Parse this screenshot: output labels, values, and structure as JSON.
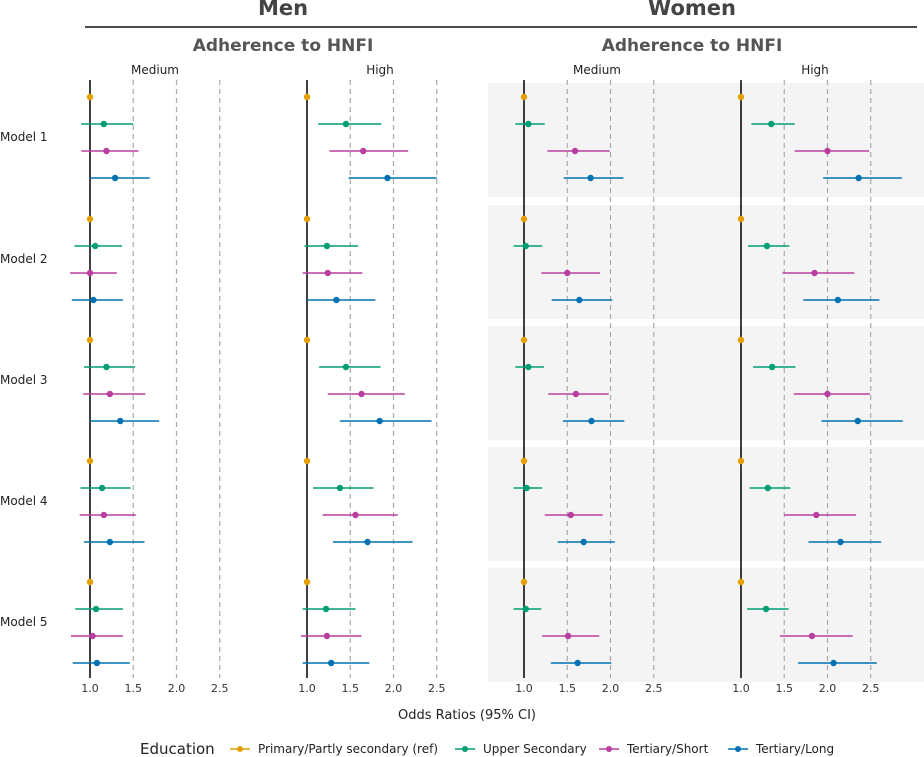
{
  "chart_data": {
    "type": "forest",
    "groups": [
      {
        "title": "Men",
        "subtitle": "Adherence to HNFI"
      },
      {
        "title": "Women",
        "subtitle": "Adherence to HNFI"
      }
    ],
    "panels": [
      "Medium",
      "High"
    ],
    "models": [
      "Model 1",
      "Model 2",
      "Model 3",
      "Model 4",
      "Model 5"
    ],
    "xlabel": "Odds Ratios (95% CI)",
    "xticks": [
      "1.0",
      "1.5",
      "2.0",
      "2.5"
    ],
    "xticks_values": [
      1.0,
      1.5,
      2.0,
      2.5
    ],
    "xlim": [
      0.82,
      2.9
    ],
    "reference_line": 1.0,
    "dashed_lines": [
      1.5,
      2.0,
      2.5
    ],
    "legend": {
      "title": "Education",
      "position": "bottom",
      "items": [
        {
          "name": "Primary/Partly secondary (ref)",
          "color": "#e69f00"
        },
        {
          "name": "Upper Secondary",
          "color": "#009e73"
        },
        {
          "name": "Tertiary/Short",
          "color": "#b83fa0"
        },
        {
          "name": "Tertiary/Long",
          "color": "#0072b2"
        }
      ]
    },
    "estimates": {
      "Men": {
        "Medium": [
          [
            [
              1.0,
              1.0,
              1.0
            ],
            [
              1.16,
              0.9,
              1.5
            ],
            [
              1.19,
              0.9,
              1.56
            ],
            [
              1.29,
              1.0,
              1.69
            ]
          ],
          [
            [
              1.0,
              1.0,
              1.0
            ],
            [
              1.06,
              0.82,
              1.37
            ],
            [
              1.0,
              0.77,
              1.31
            ],
            [
              1.04,
              0.79,
              1.38
            ]
          ],
          [
            [
              1.0,
              1.0,
              1.0
            ],
            [
              1.19,
              0.93,
              1.52
            ],
            [
              1.23,
              0.92,
              1.64
            ],
            [
              1.35,
              1.0,
              1.8
            ]
          ],
          [
            [
              1.0,
              1.0,
              1.0
            ],
            [
              1.14,
              0.89,
              1.47
            ],
            [
              1.16,
              0.88,
              1.53
            ],
            [
              1.23,
              0.93,
              1.63
            ]
          ],
          [
            [
              1.0,
              1.0,
              1.0
            ],
            [
              1.07,
              0.83,
              1.38
            ],
            [
              1.03,
              0.78,
              1.38
            ],
            [
              1.08,
              0.8,
              1.46
            ]
          ]
        ],
        "High": [
          [
            [
              1.0,
              1.0,
              1.0
            ],
            [
              1.45,
              1.13,
              1.86
            ],
            [
              1.65,
              1.26,
              2.17
            ],
            [
              1.93,
              1.48,
              2.5
            ]
          ],
          [
            [
              1.0,
              1.0,
              1.0
            ],
            [
              1.23,
              0.97,
              1.59
            ],
            [
              1.24,
              0.95,
              1.64
            ],
            [
              1.34,
              1.0,
              1.79
            ]
          ],
          [
            [
              1.0,
              1.0,
              1.0
            ],
            [
              1.45,
              1.14,
              1.85
            ],
            [
              1.63,
              1.24,
              2.13
            ],
            [
              1.84,
              1.38,
              2.44
            ]
          ],
          [
            [
              1.0,
              1.0,
              1.0
            ],
            [
              1.38,
              1.07,
              1.77
            ],
            [
              1.56,
              1.18,
              2.05
            ],
            [
              1.7,
              1.3,
              2.22
            ]
          ],
          [
            [
              1.0,
              1.0,
              1.0
            ],
            [
              1.22,
              0.95,
              1.56
            ],
            [
              1.23,
              0.93,
              1.63
            ],
            [
              1.28,
              0.95,
              1.72
            ]
          ]
        ]
      },
      "Women": {
        "Medium": [
          [
            [
              1.0,
              1.0,
              1.0
            ],
            [
              1.05,
              0.9,
              1.24
            ],
            [
              1.59,
              1.27,
              1.99
            ],
            [
              1.77,
              1.46,
              2.15
            ]
          ],
          [
            [
              1.0,
              1.0,
              1.0
            ],
            [
              1.02,
              0.88,
              1.21
            ],
            [
              1.5,
              1.2,
              1.88
            ],
            [
              1.64,
              1.32,
              2.02
            ]
          ],
          [
            [
              1.0,
              1.0,
              1.0
            ],
            [
              1.05,
              0.9,
              1.23
            ],
            [
              1.6,
              1.28,
              1.98
            ],
            [
              1.78,
              1.45,
              2.16
            ]
          ],
          [
            [
              1.0,
              1.0,
              1.0
            ],
            [
              1.03,
              0.88,
              1.21
            ],
            [
              1.54,
              1.24,
              1.91
            ],
            [
              1.69,
              1.39,
              2.05
            ]
          ],
          [
            [
              1.0,
              1.0,
              1.0
            ],
            [
              1.02,
              0.88,
              1.2
            ],
            [
              1.51,
              1.21,
              1.87
            ],
            [
              1.62,
              1.31,
              2.01
            ]
          ]
        ],
        "High": [
          [
            [
              1.0,
              1.0,
              1.0
            ],
            [
              1.35,
              1.12,
              1.62
            ],
            [
              2.0,
              1.62,
              2.48
            ],
            [
              2.36,
              1.95,
              2.86
            ]
          ],
          [
            [
              1.0,
              1.0,
              1.0
            ],
            [
              1.3,
              1.08,
              1.56
            ],
            [
              1.85,
              1.48,
              2.31
            ],
            [
              2.12,
              1.72,
              2.6
            ]
          ],
          [
            [
              1.0,
              1.0,
              1.0
            ],
            [
              1.36,
              1.14,
              1.63
            ],
            [
              2.0,
              1.61,
              2.49
            ],
            [
              2.35,
              1.93,
              2.87
            ]
          ],
          [
            [
              1.0,
              1.0,
              1.0
            ],
            [
              1.31,
              1.1,
              1.57
            ],
            [
              1.87,
              1.5,
              2.33
            ],
            [
              2.15,
              1.78,
              2.62
            ]
          ],
          [
            [
              1.0,
              1.0,
              1.0
            ],
            [
              1.29,
              1.07,
              1.55
            ],
            [
              1.82,
              1.45,
              2.29
            ],
            [
              2.07,
              1.66,
              2.57
            ]
          ]
        ]
      }
    }
  }
}
